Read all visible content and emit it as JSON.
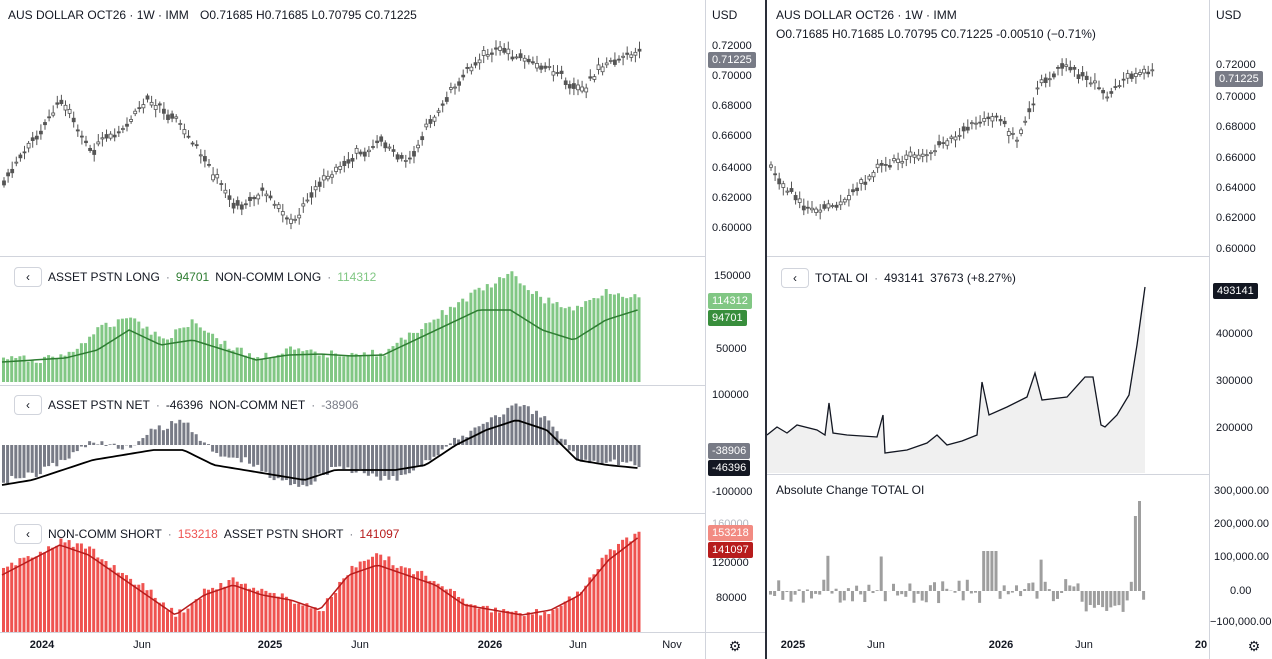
{
  "left": {
    "symbol": "AUS DOLLAR OCT26 · 1W · IMM",
    "ohlc": "O0.71685 H0.71685 L0.70795 C0.71225",
    "currency": "USD",
    "price_badge": "0.71225",
    "price_ticks": [
      "0.72000",
      "0.70000",
      "0.68000",
      "0.66000",
      "0.64000",
      "0.62000",
      "0.60000"
    ],
    "pane_long": {
      "label1": "ASSET PSTN LONG",
      "value1": "94701",
      "label2": "NON-COMM LONG",
      "value2": "114312",
      "badge1": "114312",
      "badge2": "94701",
      "ticks": [
        "150000",
        "50000"
      ]
    },
    "pane_net": {
      "label1": "ASSET PSTN NET",
      "value1": "-46396",
      "label2": "NON-COMM NET",
      "value2": "-38906",
      "badge1": "-38906",
      "badge2": "-46396",
      "ticks": [
        "100000",
        "-100000"
      ]
    },
    "pane_short": {
      "label1": "NON-COMM SHORT",
      "value1": "153218",
      "label2": "ASSET PSTN SHORT",
      "value2": "141097",
      "badge1": "153218",
      "badge2": "141097",
      "ticks": [
        "160000",
        "120000",
        "80000"
      ]
    },
    "x_ticks": [
      "2024",
      "Jun",
      "2025",
      "Jun",
      "2026",
      "Jun",
      "Nov"
    ]
  },
  "right": {
    "symbol": "AUS DOLLAR OCT26 · 1W · IMM",
    "ohlc": "O0.71685 H0.71685 L0.70795 C0.71225 -0.00510 (−0.71%)",
    "currency": "USD",
    "price_badge": "0.71225",
    "price_ticks": [
      "0.72000",
      "0.70000",
      "0.68000",
      "0.66000",
      "0.64000",
      "0.62000",
      "0.60000"
    ],
    "pane_oi": {
      "label": "TOTAL OI",
      "value": "493141",
      "change": "37673 (+8.27%)",
      "badge": "493141",
      "ticks": [
        "400000",
        "300000",
        "200000"
      ]
    },
    "pane_change": {
      "label": "Absolute Change TOTAL OI",
      "ticks": [
        "300,000.00",
        "200,000.00",
        "100,000.00",
        "0.00",
        "−100,000.00"
      ]
    },
    "x_ticks": [
      "2025",
      "Jun",
      "2026",
      "Jun",
      "20"
    ]
  },
  "icons": {
    "collapse": "chevron-left-icon",
    "settings": "gear-icon"
  },
  "colors": {
    "long_fill": "#81c784",
    "long_line": "#2e7d32",
    "net_fill": "#787b86",
    "net_line": "#000000",
    "short_fill": "#ef5350",
    "short_line": "#b71c1c",
    "badge_dark": "#131722",
    "badge_gray": "#787b86",
    "badge_green": "#388e3c",
    "badge_lgreen": "#81c784",
    "badge_lred": "#f28b82",
    "badge_dred": "#b71c1c"
  }
}
